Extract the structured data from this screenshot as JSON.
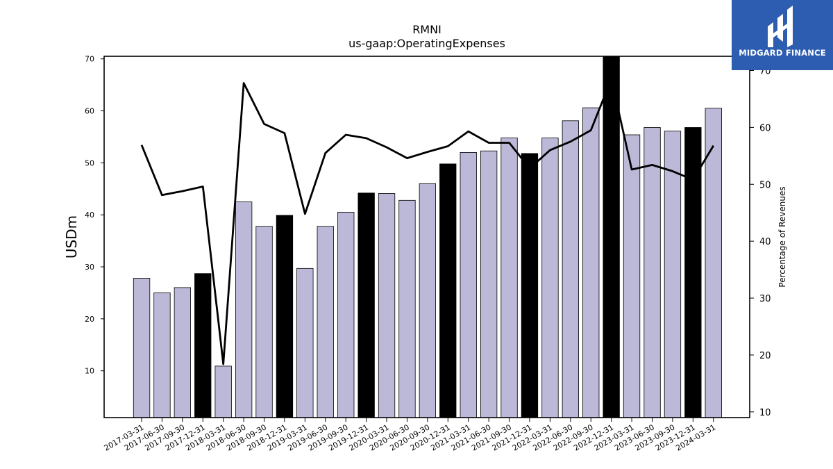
{
  "chart_data": {
    "type": "bar",
    "title": "RMNI",
    "subtitle": "us-gaap:OperatingExpenses",
    "ylabel": "USDm",
    "y2label": "Percentage of Revenues",
    "ylim": [
      1,
      70.5
    ],
    "y2lim": [
      9,
      72.5
    ],
    "yticks": [
      10,
      20,
      30,
      40,
      50,
      60,
      70
    ],
    "y2ticks": [
      10,
      20,
      30,
      40,
      50,
      60,
      70
    ],
    "grid": false,
    "categories": [
      "2017-03-31",
      "2017-06-30",
      "2017-09-30",
      "2017-12-31",
      "2018-03-31",
      "2018-06-30",
      "2018-09-30",
      "2018-12-31",
      "2019-03-31",
      "2019-06-30",
      "2019-09-30",
      "2019-12-31",
      "2020-03-31",
      "2020-06-30",
      "2020-09-30",
      "2020-12-31",
      "2021-03-31",
      "2021-06-30",
      "2021-09-30",
      "2021-12-31",
      "2022-03-31",
      "2022-06-30",
      "2022-09-30",
      "2022-12-31",
      "2023-03-31",
      "2023-06-30",
      "2023-09-30",
      "2023-12-31",
      "2024-03-31"
    ],
    "series": [
      {
        "kind": "bar",
        "axis": "left",
        "values": [
          27.8,
          25.0,
          26.0,
          28.7,
          10.9,
          42.5,
          37.8,
          39.9,
          29.7,
          37.8,
          40.5,
          44.2,
          44.1,
          42.8,
          46.0,
          49.8,
          52.0,
          52.3,
          54.8,
          51.8,
          54.8,
          58.1,
          60.6,
          70.5,
          55.4,
          56.8,
          56.1,
          56.8,
          60.5
        ]
      },
      {
        "kind": "line",
        "axis": "right",
        "values": [
          56.9,
          48.1,
          48.8,
          49.6,
          18.4,
          67.8,
          60.6,
          59.0,
          44.8,
          55.5,
          58.7,
          58.1,
          56.5,
          54.6,
          55.7,
          56.7,
          59.3,
          57.3,
          57.3,
          52.8,
          56.0,
          57.5,
          59.5,
          68.5,
          52.6,
          53.4,
          52.3,
          50.8,
          56.8
        ]
      }
    ],
    "colors": {
      "bar": "#bcb8d8",
      "bar_q4": "#000000",
      "line": "#000000"
    }
  },
  "logo": {
    "text": "MIDGARD FINANCE",
    "color": "#2d5db0"
  }
}
